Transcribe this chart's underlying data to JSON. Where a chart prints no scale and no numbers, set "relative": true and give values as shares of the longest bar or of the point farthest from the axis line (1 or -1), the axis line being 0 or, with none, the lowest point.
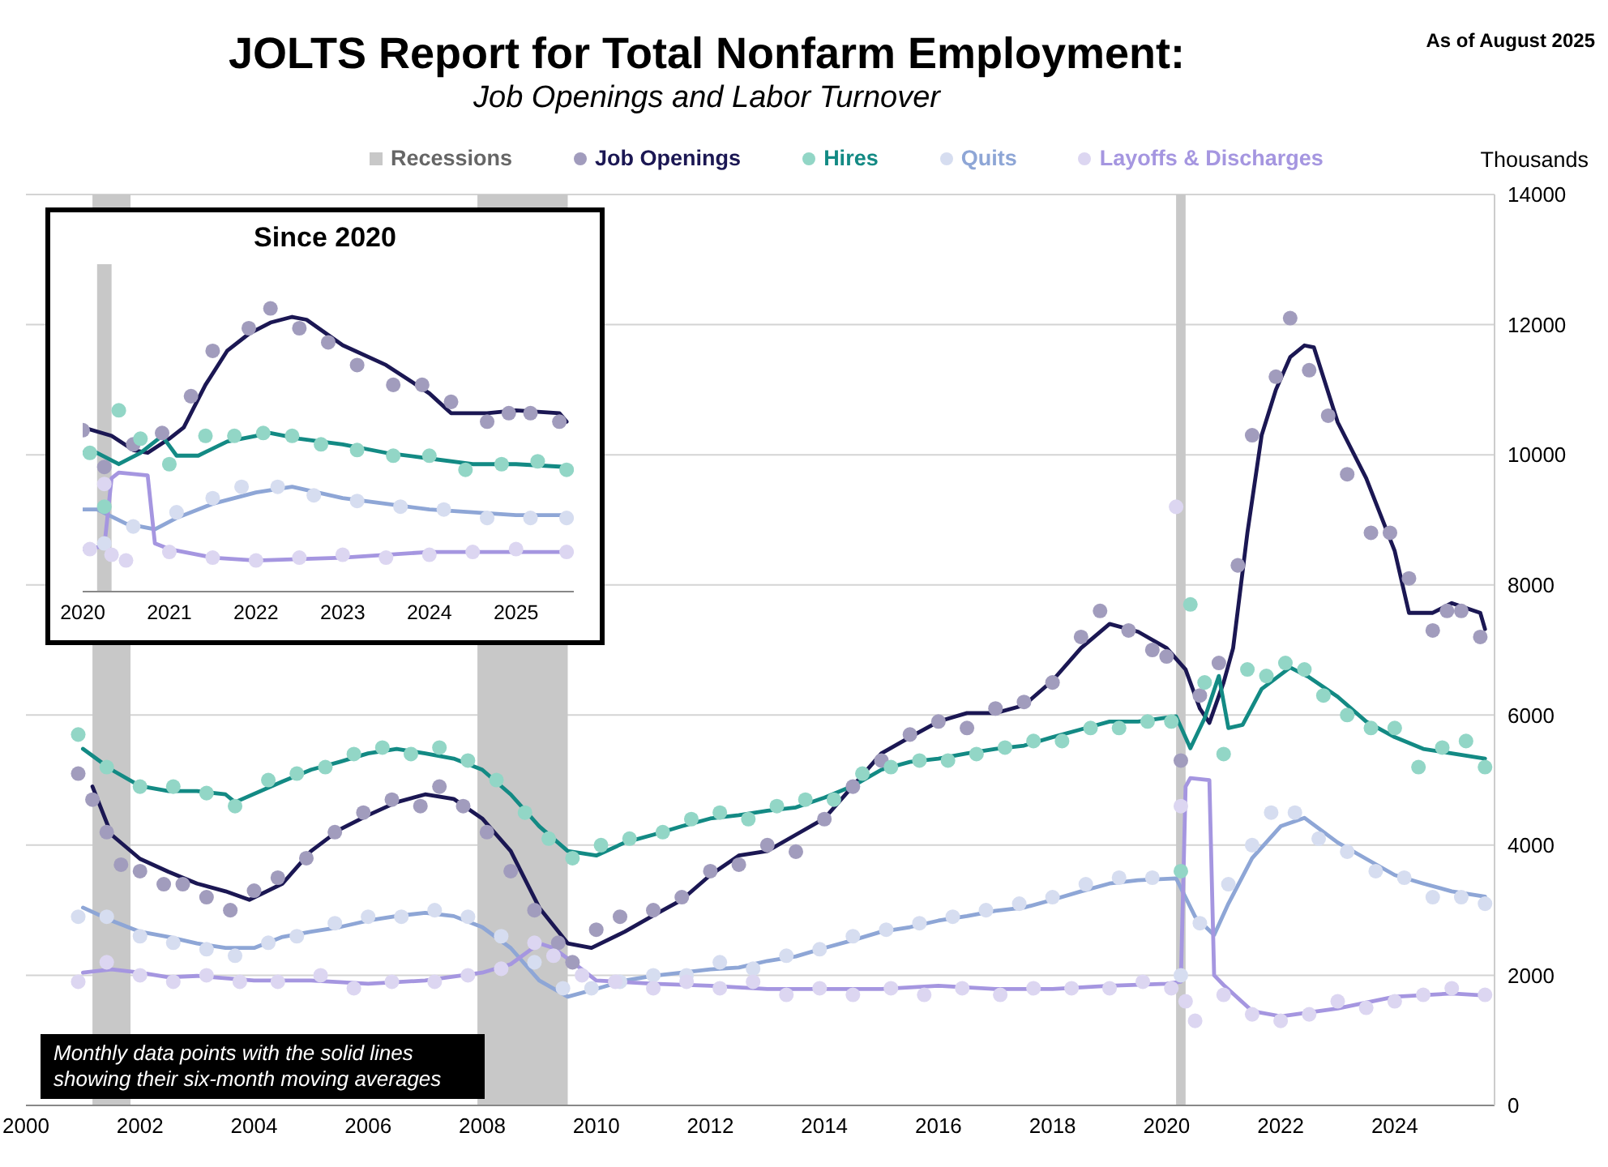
{
  "chart_data": [
    {
      "type": "line",
      "title": "JOLTS Report for Total Nonfarm Employment:",
      "subtitle": "Job Openings and Labor Turnover",
      "ylabel": "Thousands",
      "annotations": [
        "As of August 2025",
        "Monthly data points with the solid lines showing their six-month moving averages"
      ],
      "xlim": [
        "2000-01",
        "2025-10"
      ],
      "xticks": [
        "2000",
        "2002",
        "2004",
        "2006",
        "2008",
        "2010",
        "2012",
        "2014",
        "2016",
        "2018",
        "2020",
        "2022",
        "2024"
      ],
      "ylim": [
        0,
        14000
      ],
      "yticks": [
        0,
        2000,
        4000,
        6000,
        8000,
        10000,
        12000,
        14000
      ],
      "grid": "y",
      "legend": "top",
      "bands": [
        {
          "axis": "x",
          "from": "2001-03",
          "to": "2001-11",
          "label": "Recessions",
          "color": "#c8c8c8"
        },
        {
          "axis": "x",
          "from": "2007-12",
          "to": "2009-07",
          "color": "#c8c8c8"
        },
        {
          "axis": "x",
          "from": "2020-03",
          "to": "2020-05",
          "color": "#c8c8c8"
        }
      ],
      "series": [
        {
          "type": "scatter",
          "name": "Job Openings",
          "color": "#a19cbd",
          "x": [
            "2000-12",
            "2001-03",
            "2001-06",
            "2001-09",
            "2002-01",
            "2002-06",
            "2002-10",
            "2003-03",
            "2003-08",
            "2004-01",
            "2004-06",
            "2004-12",
            "2005-06",
            "2005-12",
            "2006-06",
            "2006-12",
            "2007-04",
            "2007-09",
            "2008-02",
            "2008-07",
            "2008-12",
            "2009-05",
            "2009-08",
            "2010-01",
            "2010-06",
            "2011-01",
            "2011-07",
            "2012-01",
            "2012-07",
            "2013-01",
            "2013-07",
            "2014-01",
            "2014-07",
            "2015-01",
            "2015-07",
            "2016-01",
            "2016-07",
            "2017-01",
            "2017-07",
            "2018-01",
            "2018-07",
            "2018-11",
            "2019-05",
            "2019-10",
            "2020-01",
            "2020-04",
            "2020-08",
            "2020-12",
            "2021-04",
            "2021-07",
            "2021-12",
            "2022-03",
            "2022-07",
            "2022-11",
            "2023-03",
            "2023-08",
            "2023-12",
            "2024-04",
            "2024-09",
            "2024-12",
            "2025-03",
            "2025-07"
          ],
          "values": [
            5100,
            4700,
            4200,
            3700,
            3600,
            3400,
            3400,
            3200,
            3000,
            3300,
            3500,
            3800,
            4200,
            4500,
            4700,
            4600,
            4900,
            4600,
            4200,
            3600,
            3000,
            2500,
            2200,
            2700,
            2900,
            3000,
            3200,
            3600,
            3700,
            4000,
            3900,
            4400,
            4900,
            5300,
            5700,
            5900,
            5800,
            6100,
            6200,
            6500,
            7200,
            7600,
            7300,
            7000,
            6900,
            5300,
            6300,
            6800,
            8300,
            10300,
            11200,
            12100,
            11300,
            10600,
            9700,
            8800,
            8800,
            8100,
            7300,
            7600,
            7600,
            7200
          ]
        },
        {
          "type": "scatter",
          "name": "Hires",
          "color": "#92d6c6",
          "x": [
            "2000-12",
            "2001-06",
            "2002-01",
            "2002-08",
            "2003-03",
            "2003-09",
            "2004-04",
            "2004-10",
            "2005-04",
            "2005-10",
            "2006-04",
            "2006-10",
            "2007-04",
            "2007-10",
            "2008-04",
            "2008-10",
            "2009-03",
            "2009-08",
            "2010-02",
            "2010-08",
            "2011-03",
            "2011-09",
            "2012-03",
            "2012-09",
            "2013-03",
            "2013-09",
            "2014-03",
            "2014-09",
            "2015-03",
            "2015-09",
            "2016-03",
            "2016-09",
            "2017-03",
            "2017-09",
            "2018-03",
            "2018-09",
            "2019-03",
            "2019-09",
            "2020-02",
            "2020-04",
            "2020-06",
            "2020-09",
            "2021-01",
            "2021-06",
            "2021-10",
            "2022-02",
            "2022-06",
            "2022-10",
            "2023-03",
            "2023-08",
            "2024-01",
            "2024-06",
            "2024-11",
            "2025-04",
            "2025-08"
          ],
          "values": [
            5700,
            5200,
            4900,
            4900,
            4800,
            4600,
            5000,
            5100,
            5200,
            5400,
            5500,
            5400,
            5500,
            5300,
            5000,
            4500,
            4100,
            3800,
            4000,
            4100,
            4200,
            4400,
            4500,
            4400,
            4600,
            4700,
            4700,
            5100,
            5200,
            5300,
            5300,
            5400,
            5500,
            5600,
            5600,
            5800,
            5800,
            5900,
            5900,
            3600,
            7700,
            6500,
            5400,
            6700,
            6600,
            6800,
            6700,
            6300,
            6000,
            5800,
            5800,
            5200,
            5500,
            5600,
            5200
          ]
        },
        {
          "type": "scatter",
          "name": "Quits",
          "color": "#d6ddf0",
          "x": [
            "2000-12",
            "2001-06",
            "2002-01",
            "2002-08",
            "2003-03",
            "2003-09",
            "2004-04",
            "2004-10",
            "2005-06",
            "2006-01",
            "2006-08",
            "2007-03",
            "2007-10",
            "2008-05",
            "2008-12",
            "2009-06",
            "2009-12",
            "2010-06",
            "2011-01",
            "2011-08",
            "2012-03",
            "2012-10",
            "2013-05",
            "2013-12",
            "2014-07",
            "2015-02",
            "2015-09",
            "2016-04",
            "2016-11",
            "2017-06",
            "2018-01",
            "2018-08",
            "2019-03",
            "2019-10",
            "2020-04",
            "2020-08",
            "2021-02",
            "2021-07",
            "2021-11",
            "2022-04",
            "2022-09",
            "2023-03",
            "2023-09",
            "2024-03",
            "2024-09",
            "2025-03",
            "2025-08"
          ],
          "values": [
            2900,
            2900,
            2600,
            2500,
            2400,
            2300,
            2500,
            2600,
            2800,
            2900,
            2900,
            3000,
            2900,
            2600,
            2200,
            1800,
            1800,
            1900,
            2000,
            2000,
            2200,
            2100,
            2300,
            2400,
            2600,
            2700,
            2800,
            2900,
            3000,
            3100,
            3200,
            3400,
            3500,
            3500,
            2000,
            2800,
            3400,
            4000,
            4500,
            4500,
            4100,
            3900,
            3600,
            3500,
            3200,
            3200,
            3100
          ]
        },
        {
          "type": "scatter",
          "name": "Layoffs & Discharges",
          "color": "#dcd6f1",
          "x": [
            "2000-12",
            "2001-06",
            "2002-01",
            "2002-08",
            "2003-03",
            "2003-10",
            "2004-06",
            "2005-03",
            "2005-10",
            "2006-06",
            "2007-03",
            "2007-10",
            "2008-05",
            "2008-12",
            "2009-04",
            "2009-10",
            "2010-05",
            "2011-01",
            "2011-08",
            "2012-03",
            "2012-10",
            "2013-05",
            "2013-12",
            "2014-07",
            "2015-03",
            "2015-10",
            "2016-06",
            "2017-02",
            "2017-09",
            "2018-05",
            "2019-01",
            "2019-08",
            "2020-02",
            "2020-03",
            "2020-04",
            "2020-05",
            "2020-07",
            "2021-01",
            "2021-07",
            "2022-01",
            "2022-07",
            "2023-01",
            "2023-07",
            "2024-01",
            "2024-07",
            "2025-01",
            "2025-08"
          ],
          "values": [
            1900,
            2200,
            2000,
            1900,
            2000,
            1900,
            1900,
            2000,
            1800,
            1900,
            1900,
            2000,
            2100,
            2500,
            2300,
            2000,
            1900,
            1800,
            1900,
            1800,
            1900,
            1700,
            1800,
            1700,
            1800,
            1700,
            1800,
            1700,
            1800,
            1800,
            1800,
            1900,
            1800,
            9200,
            4600,
            1600,
            1300,
            1700,
            1400,
            1300,
            1400,
            1600,
            1500,
            1600,
            1700,
            1800,
            1700
          ]
        },
        {
          "color": "#1b1753",
          "x": [
            "2001-03",
            "2001-07",
            "2002-01",
            "2002-07",
            "2003-01",
            "2003-07",
            "2003-12",
            "2004-07",
            "2005-01",
            "2005-07",
            "2006-01",
            "2006-07",
            "2007-01",
            "2007-07",
            "2008-01",
            "2008-07",
            "2009-01",
            "2009-07",
            "2009-12",
            "2010-07",
            "2011-01",
            "2011-07",
            "2012-01",
            "2012-07",
            "2013-01",
            "2013-07",
            "2014-01",
            "2014-07",
            "2015-01",
            "2015-07",
            "2016-01",
            "2016-07",
            "2017-01",
            "2017-07",
            "2018-01",
            "2018-07",
            "2019-01",
            "2019-07",
            "2020-01",
            "2020-05",
            "2020-08",
            "2020-10",
            "2021-01",
            "2021-03",
            "2021-06",
            "2021-09",
            "2021-12",
            "2022-03",
            "2022-06",
            "2022-08",
            "2023-01",
            "2023-07",
            "2024-01",
            "2024-04",
            "2024-09",
            "2025-01",
            "2025-07",
            "2025-08"
          ],
          "values": [
            4900,
            4160,
            3790,
            3590,
            3410,
            3290,
            3160,
            3410,
            3910,
            4240,
            4460,
            4660,
            4780,
            4710,
            4410,
            3910,
            3040,
            2490,
            2420,
            2670,
            2920,
            3160,
            3540,
            3840,
            3910,
            4160,
            4410,
            4910,
            5410,
            5660,
            5900,
            6030,
            6030,
            6150,
            6530,
            7030,
            7400,
            7280,
            7030,
            6700,
            6100,
            5880,
            6500,
            7030,
            8800,
            10300,
            11000,
            11500,
            11680,
            11650,
            10500,
            9640,
            8520,
            7570,
            7570,
            7720,
            7570,
            7320
          ]
        },
        {
          "color": "#138a84",
          "x": [
            "2001-01",
            "2001-07",
            "2002-01",
            "2002-07",
            "2003-01",
            "2003-07",
            "2003-09",
            "2004-07",
            "2005-01",
            "2005-07",
            "2006-01",
            "2006-07",
            "2007-01",
            "2007-07",
            "2008-01",
            "2008-07",
            "2009-01",
            "2009-07",
            "2010-01",
            "2010-07",
            "2011-01",
            "2011-07",
            "2012-01",
            "2012-07",
            "2013-01",
            "2013-07",
            "2014-01",
            "2014-07",
            "2015-01",
            "2015-07",
            "2016-01",
            "2016-07",
            "2017-01",
            "2017-07",
            "2018-01",
            "2018-07",
            "2019-01",
            "2019-07",
            "2020-03",
            "2020-06",
            "2020-09",
            "2020-12",
            "2021-02",
            "2021-05",
            "2021-09",
            "2022-03",
            "2022-07",
            "2023-01",
            "2023-07",
            "2024-01",
            "2024-07",
            "2025-01",
            "2025-08"
          ],
          "values": [
            5480,
            5160,
            4910,
            4830,
            4830,
            4780,
            4660,
            4980,
            5160,
            5280,
            5410,
            5480,
            5410,
            5330,
            5160,
            4780,
            4290,
            3910,
            3840,
            4040,
            4160,
            4290,
            4410,
            4460,
            4530,
            4580,
            4730,
            4910,
            5160,
            5280,
            5330,
            5410,
            5480,
            5530,
            5660,
            5780,
            5900,
            5900,
            5980,
            5490,
            5950,
            6600,
            5800,
            5850,
            6400,
            6730,
            6580,
            6280,
            5900,
            5660,
            5480,
            5410,
            5330
          ]
        },
        {
          "color": "#8ea6d6",
          "x": [
            "2001-01",
            "2001-07",
            "2002-01",
            "2002-07",
            "2003-01",
            "2003-07",
            "2004-01",
            "2004-07",
            "2005-01",
            "2005-07",
            "2006-01",
            "2006-07",
            "2007-01",
            "2007-07",
            "2008-01",
            "2008-07",
            "2009-01",
            "2009-07",
            "2010-01",
            "2010-07",
            "2011-01",
            "2011-07",
            "2012-01",
            "2012-07",
            "2013-01",
            "2013-07",
            "2014-01",
            "2014-07",
            "2015-01",
            "2015-07",
            "2016-01",
            "2016-07",
            "2017-01",
            "2017-07",
            "2018-01",
            "2018-07",
            "2019-01",
            "2019-07",
            "2020-03",
            "2020-07",
            "2020-11",
            "2021-02",
            "2021-07",
            "2022-01",
            "2022-06",
            "2023-01",
            "2023-07",
            "2024-01",
            "2024-07",
            "2025-01",
            "2025-08"
          ],
          "values": [
            3040,
            2840,
            2670,
            2590,
            2490,
            2420,
            2420,
            2590,
            2670,
            2740,
            2840,
            2910,
            2960,
            2910,
            2740,
            2420,
            1920,
            1670,
            1790,
            1920,
            1990,
            2040,
            2090,
            2120,
            2220,
            2290,
            2420,
            2540,
            2670,
            2740,
            2840,
            2910,
            2990,
            3040,
            3160,
            3290,
            3410,
            3460,
            3490,
            2900,
            2620,
            3100,
            3800,
            4290,
            4420,
            4040,
            3790,
            3540,
            3410,
            3290,
            3210
          ]
        },
        {
          "color": "#a596e0",
          "x": [
            "2001-01",
            "2001-07",
            "2002-01",
            "2002-07",
            "2003-01",
            "2004-01",
            "2005-01",
            "2006-01",
            "2007-01",
            "2008-01",
            "2008-07",
            "2009-01",
            "2009-04",
            "2009-10",
            "2010-01",
            "2011-01",
            "2012-01",
            "2013-01",
            "2014-01",
            "2015-01",
            "2016-01",
            "2017-01",
            "2018-01",
            "2019-01",
            "2020-01",
            "2020-04",
            "2020-05",
            "2020-06",
            "2020-10",
            "2020-11",
            "2021-01",
            "2021-07",
            "2022-01",
            "2023-01",
            "2024-01",
            "2025-01",
            "2025-08"
          ],
          "values": [
            2040,
            2090,
            2040,
            1970,
            1990,
            1920,
            1920,
            1870,
            1920,
            2040,
            2170,
            2490,
            2420,
            2090,
            1920,
            1870,
            1840,
            1790,
            1790,
            1790,
            1840,
            1790,
            1790,
            1840,
            1870,
            1900,
            4900,
            5030,
            5000,
            2000,
            1850,
            1450,
            1370,
            1490,
            1670,
            1720,
            1690
          ]
        }
      ]
    },
    {
      "type": "line",
      "title": "Since 2020",
      "tick_labels": "x",
      "grid": "y",
      "xlim": [
        "2020-01",
        "2025-09"
      ],
      "xticks": [
        "2020",
        "2021",
        "2022",
        "2023",
        "2024",
        "2025"
      ],
      "relative": true,
      "bands": [
        {
          "axis": "x",
          "from": "2020-03",
          "to": "2020-05",
          "color": "#c8c8c8"
        }
      ],
      "series": [
        {
          "type": "scatter",
          "color": "#a19cbd",
          "x": [
            "2020-01",
            "2020-04",
            "2020-08",
            "2020-12",
            "2021-04",
            "2021-07",
            "2021-12",
            "2022-03",
            "2022-07",
            "2022-11",
            "2023-03",
            "2023-08",
            "2023-12",
            "2024-04",
            "2024-09",
            "2024-12",
            "2025-03",
            "2025-07"
          ],
          "values": [
            0.57,
            0.44,
            0.52,
            0.56,
            0.69,
            0.85,
            0.93,
            1,
            0.93,
            0.88,
            0.8,
            0.73,
            0.73,
            0.67,
            0.6,
            0.63,
            0.63,
            0.6
          ]
        },
        {
          "type": "scatter",
          "color": "#92d6c6",
          "x": [
            "2020-02",
            "2020-04",
            "2020-06",
            "2020-09",
            "2021-01",
            "2021-06",
            "2021-10",
            "2022-02",
            "2022-06",
            "2022-10",
            "2023-03",
            "2023-08",
            "2024-01",
            "2024-06",
            "2024-11",
            "2025-04",
            "2025-08"
          ],
          "values": [
            0.49,
            0.3,
            0.64,
            0.54,
            0.45,
            0.55,
            0.55,
            0.56,
            0.55,
            0.52,
            0.5,
            0.48,
            0.48,
            0.43,
            0.45,
            0.46,
            0.43
          ]
        },
        {
          "type": "scatter",
          "color": "#d6ddf0",
          "x": [
            "2020-04",
            "2020-08",
            "2021-02",
            "2021-07",
            "2021-11",
            "2022-04",
            "2022-09",
            "2023-03",
            "2023-09",
            "2024-03",
            "2024-09",
            "2025-03",
            "2025-08"
          ],
          "values": [
            0.17,
            0.23,
            0.28,
            0.33,
            0.37,
            0.37,
            0.34,
            0.32,
            0.3,
            0.29,
            0.26,
            0.26,
            0.26
          ]
        },
        {
          "type": "scatter",
          "color": "#dcd6f1",
          "x": [
            "2020-02",
            "2020-04",
            "2020-05",
            "2020-07",
            "2021-01",
            "2021-07",
            "2022-01",
            "2022-07",
            "2023-01",
            "2023-07",
            "2024-01",
            "2024-07",
            "2025-01",
            "2025-08"
          ],
          "values": [
            0.15,
            0.38,
            0.13,
            0.11,
            0.14,
            0.12,
            0.11,
            0.12,
            0.13,
            0.12,
            0.13,
            0.14,
            0.15,
            0.14
          ]
        },
        {
          "color": "#1b1753",
          "x": [
            "2020-01",
            "2020-05",
            "2020-08",
            "2020-10",
            "2021-01",
            "2021-03",
            "2021-06",
            "2021-09",
            "2021-12",
            "2022-03",
            "2022-06",
            "2022-08",
            "2023-01",
            "2023-07",
            "2024-01",
            "2024-04",
            "2024-09",
            "2025-01",
            "2025-07",
            "2025-08"
          ],
          "values": [
            0.58,
            0.55,
            0.5,
            0.49,
            0.54,
            0.58,
            0.73,
            0.85,
            0.91,
            0.95,
            0.97,
            0.96,
            0.87,
            0.8,
            0.7,
            0.63,
            0.63,
            0.64,
            0.63,
            0.6
          ]
        },
        {
          "color": "#138a84",
          "x": [
            "2020-01",
            "2020-03",
            "2020-06",
            "2020-09",
            "2020-12",
            "2021-02",
            "2021-05",
            "2021-09",
            "2022-03",
            "2022-07",
            "2023-01",
            "2023-07",
            "2024-01",
            "2024-07",
            "2025-01",
            "2025-08"
          ],
          "values": [
            0.49,
            0.49,
            0.45,
            0.49,
            0.55,
            0.48,
            0.48,
            0.53,
            0.56,
            0.54,
            0.52,
            0.49,
            0.47,
            0.45,
            0.45,
            0.44
          ]
        },
        {
          "color": "#8ea6d6",
          "x": [
            "2020-01",
            "2020-03",
            "2020-07",
            "2020-11",
            "2021-02",
            "2021-07",
            "2022-01",
            "2022-06",
            "2023-01",
            "2023-07",
            "2024-01",
            "2024-07",
            "2025-01",
            "2025-08"
          ],
          "values": [
            0.29,
            0.29,
            0.24,
            0.22,
            0.26,
            0.31,
            0.35,
            0.37,
            0.33,
            0.31,
            0.29,
            0.28,
            0.27,
            0.27
          ]
        },
        {
          "color": "#a596e0",
          "x": [
            "2020-01",
            "2020-04",
            "2020-05",
            "2020-06",
            "2020-10",
            "2020-11",
            "2021-01",
            "2021-07",
            "2022-01",
            "2023-01",
            "2024-01",
            "2025-01",
            "2025-08"
          ],
          "values": [
            0.15,
            0.16,
            0.4,
            0.42,
            0.41,
            0.17,
            0.15,
            0.12,
            0.11,
            0.12,
            0.14,
            0.14,
            0.14
          ]
        }
      ]
    }
  ]
}
